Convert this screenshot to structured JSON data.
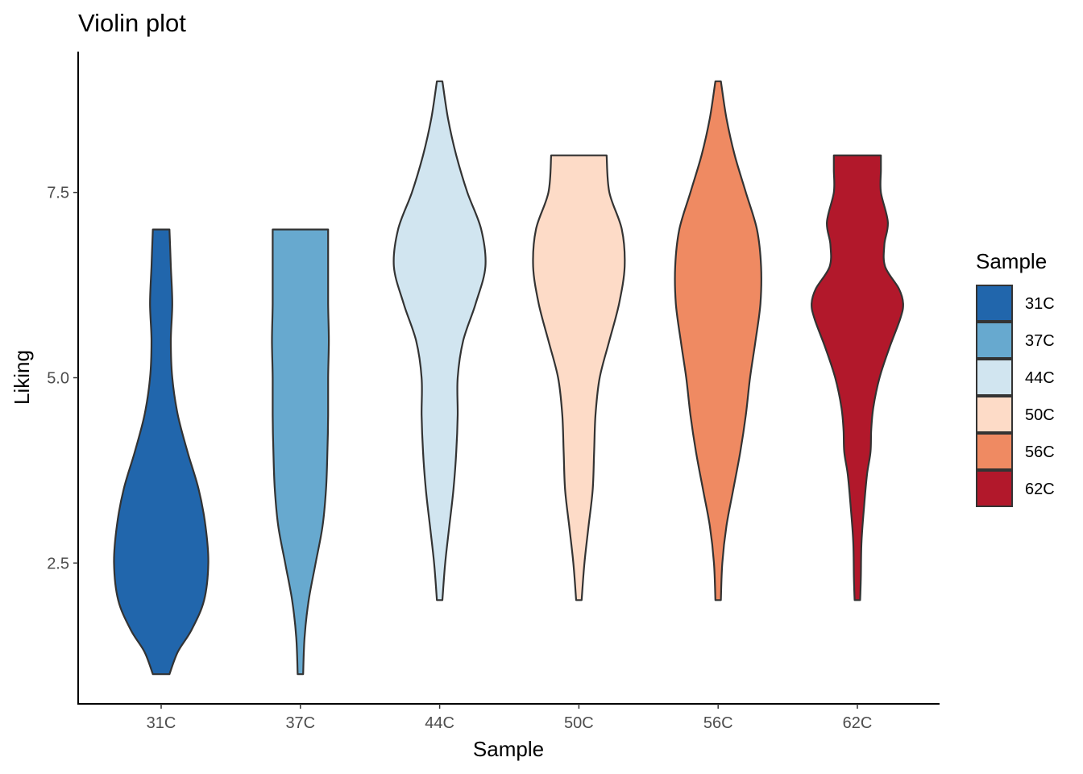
{
  "chart_data": {
    "type": "violin",
    "title": "Violin plot",
    "xlabel": "Sample",
    "ylabel": "Liking",
    "categories": [
      "31C",
      "37C",
      "44C",
      "50C",
      "56C",
      "62C"
    ],
    "ylim": [
      0.6,
      9.4
    ],
    "yticks": [
      2.5,
      5.0,
      7.5
    ],
    "ytick_labels": [
      "2.5",
      "5.0",
      "7.5"
    ],
    "grid": false,
    "legend": {
      "title": "Sample",
      "position": "right",
      "entries": [
        "31C",
        "37C",
        "44C",
        "50C",
        "56C",
        "62C"
      ]
    },
    "colors": [
      "#2166AC",
      "#67A9CF",
      "#D1E5F0",
      "#FDDBC7",
      "#EF8A62",
      "#B2182B"
    ],
    "series": [
      {
        "name": "31C",
        "range": [
          1,
          7
        ],
        "density": [
          [
            1.0,
            0.12
          ],
          [
            1.3,
            0.24
          ],
          [
            1.6,
            0.44
          ],
          [
            2.0,
            0.62
          ],
          [
            2.5,
            0.68
          ],
          [
            3.0,
            0.64
          ],
          [
            3.5,
            0.54
          ],
          [
            4.0,
            0.38
          ],
          [
            4.5,
            0.24
          ],
          [
            5.0,
            0.16
          ],
          [
            5.5,
            0.14
          ],
          [
            6.0,
            0.16
          ],
          [
            6.5,
            0.14
          ],
          [
            7.0,
            0.12
          ]
        ]
      },
      {
        "name": "37C",
        "range": [
          1,
          7
        ],
        "density": [
          [
            1.0,
            0.04
          ],
          [
            1.5,
            0.06
          ],
          [
            2.0,
            0.12
          ],
          [
            2.5,
            0.22
          ],
          [
            3.0,
            0.32
          ],
          [
            3.5,
            0.37
          ],
          [
            4.0,
            0.39
          ],
          [
            4.5,
            0.4
          ],
          [
            5.0,
            0.4
          ],
          [
            5.5,
            0.41
          ],
          [
            6.0,
            0.4
          ],
          [
            6.5,
            0.4
          ],
          [
            7.0,
            0.4
          ]
        ]
      },
      {
        "name": "44C",
        "range": [
          2,
          9
        ],
        "density": [
          [
            2.0,
            0.04
          ],
          [
            2.5,
            0.08
          ],
          [
            3.0,
            0.14
          ],
          [
            3.5,
            0.2
          ],
          [
            4.0,
            0.24
          ],
          [
            4.5,
            0.26
          ],
          [
            5.0,
            0.26
          ],
          [
            5.5,
            0.34
          ],
          [
            6.0,
            0.52
          ],
          [
            6.5,
            0.66
          ],
          [
            7.0,
            0.6
          ],
          [
            7.5,
            0.4
          ],
          [
            8.0,
            0.24
          ],
          [
            8.5,
            0.12
          ],
          [
            9.0,
            0.04
          ]
        ]
      },
      {
        "name": "50C",
        "range": [
          2,
          8
        ],
        "density": [
          [
            2.0,
            0.04
          ],
          [
            2.5,
            0.08
          ],
          [
            3.0,
            0.14
          ],
          [
            3.5,
            0.2
          ],
          [
            4.0,
            0.22
          ],
          [
            4.5,
            0.24
          ],
          [
            5.0,
            0.3
          ],
          [
            5.5,
            0.44
          ],
          [
            6.0,
            0.58
          ],
          [
            6.5,
            0.66
          ],
          [
            7.0,
            0.62
          ],
          [
            7.5,
            0.44
          ],
          [
            8.0,
            0.4
          ]
        ]
      },
      {
        "name": "56C",
        "range": [
          2,
          9
        ],
        "density": [
          [
            2.0,
            0.04
          ],
          [
            2.5,
            0.06
          ],
          [
            3.0,
            0.12
          ],
          [
            3.5,
            0.22
          ],
          [
            4.0,
            0.32
          ],
          [
            4.5,
            0.4
          ],
          [
            5.0,
            0.46
          ],
          [
            5.5,
            0.54
          ],
          [
            6.0,
            0.61
          ],
          [
            6.5,
            0.62
          ],
          [
            7.0,
            0.56
          ],
          [
            7.5,
            0.4
          ],
          [
            8.0,
            0.24
          ],
          [
            8.5,
            0.12
          ],
          [
            9.0,
            0.04
          ]
        ]
      },
      {
        "name": "62C",
        "range": [
          2,
          8
        ],
        "density": [
          [
            2.0,
            0.04
          ],
          [
            2.3,
            0.05
          ],
          [
            2.8,
            0.06
          ],
          [
            3.3,
            0.1
          ],
          [
            3.7,
            0.14
          ],
          [
            4.0,
            0.19
          ],
          [
            4.3,
            0.2
          ],
          [
            4.6,
            0.23
          ],
          [
            5.0,
            0.32
          ],
          [
            5.4,
            0.46
          ],
          [
            5.8,
            0.62
          ],
          [
            6.0,
            0.66
          ],
          [
            6.2,
            0.6
          ],
          [
            6.5,
            0.4
          ],
          [
            6.8,
            0.39
          ],
          [
            7.1,
            0.44
          ],
          [
            7.5,
            0.34
          ],
          [
            7.8,
            0.34
          ],
          [
            8.0,
            0.34
          ]
        ]
      }
    ]
  }
}
